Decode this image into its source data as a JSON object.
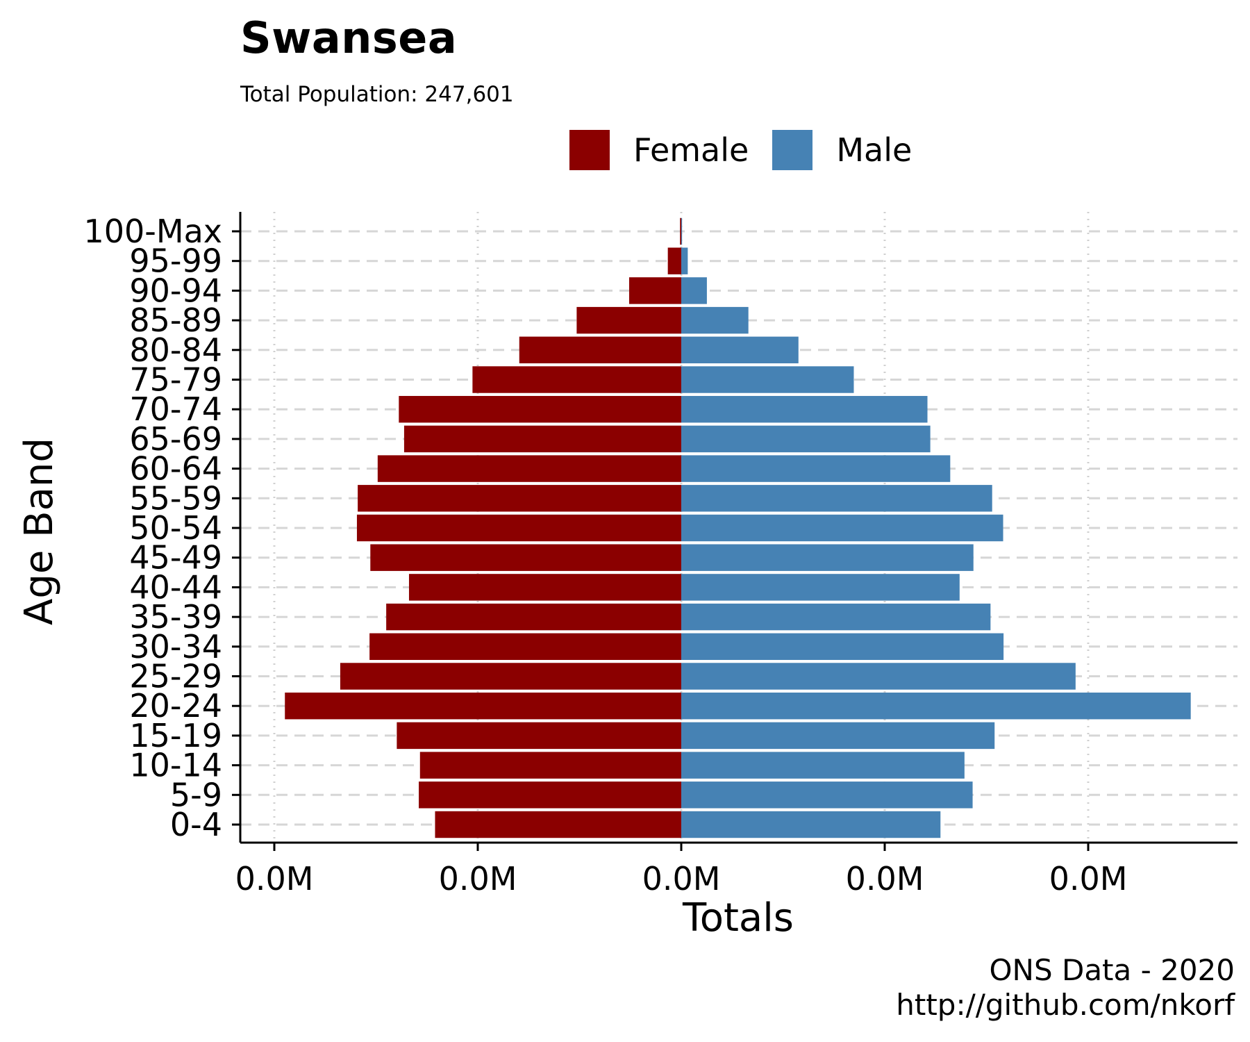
{
  "chart_data": {
    "type": "bar",
    "orientation": "horizontal",
    "title": "Swansea",
    "subtitle": "Total Population:  247,601",
    "xlabel": "Totals",
    "ylabel": "Age Band",
    "x_tick_labels": [
      "0.0M",
      "0.0M",
      "0.0M",
      "0.0M",
      "0.0M"
    ],
    "xlim": [
      -10000,
      10400
    ],
    "x_ticks": [
      -10000,
      -5000,
      0,
      5000,
      10000
    ],
    "categories": [
      "0-4",
      "5-9",
      "10-14",
      "15-19",
      "20-24",
      "25-29",
      "30-34",
      "35-39",
      "40-44",
      "45-49",
      "50-54",
      "55-59",
      "60-64",
      "65-69",
      "70-74",
      "75-79",
      "80-84",
      "85-89",
      "90-94",
      "95-99",
      "100-Max"
    ],
    "series": [
      {
        "name": "Female",
        "color": "#8B0000",
        "values": [
          -6050,
          -6450,
          -6420,
          -6990,
          -9740,
          -8380,
          -7660,
          -7250,
          -6690,
          -7640,
          -7970,
          -7950,
          -7460,
          -6810,
          -6940,
          -5130,
          -3980,
          -2570,
          -1280,
          -330,
          -30
        ]
      },
      {
        "name": "Male",
        "color": "#4682B4",
        "values": [
          6370,
          7160,
          6960,
          7700,
          12520,
          9690,
          7920,
          7600,
          6840,
          7180,
          7910,
          7640,
          6610,
          6120,
          6050,
          4240,
          2880,
          1650,
          630,
          160,
          20
        ]
      }
    ],
    "legend_position": "top",
    "grid": {
      "major": "dashed",
      "minor_x": "dotted"
    }
  },
  "caption": {
    "line1": "ONS Data - 2020",
    "line2": "http://github.com/nkorf"
  }
}
